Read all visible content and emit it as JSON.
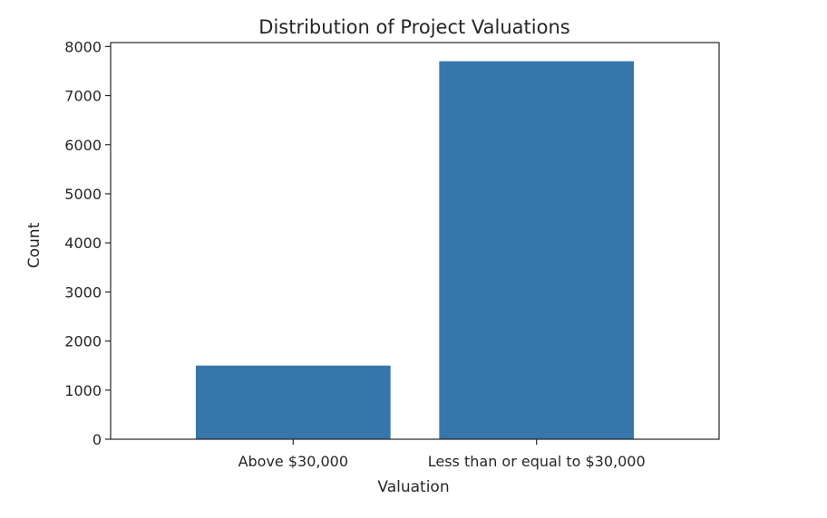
{
  "chart_data": {
    "type": "bar",
    "title": "Distribution of Project Valuations",
    "xlabel": "Valuation",
    "ylabel": "Count",
    "categories": [
      "Above $30,000",
      "Less than or equal to $30,000"
    ],
    "values": [
      1500,
      7700
    ],
    "ylim": [
      0,
      8080
    ],
    "yticks": [
      0,
      1000,
      2000,
      3000,
      4000,
      5000,
      6000,
      7000,
      8000
    ],
    "bar_color": "#3776ab",
    "grid": false,
    "legend": false
  }
}
